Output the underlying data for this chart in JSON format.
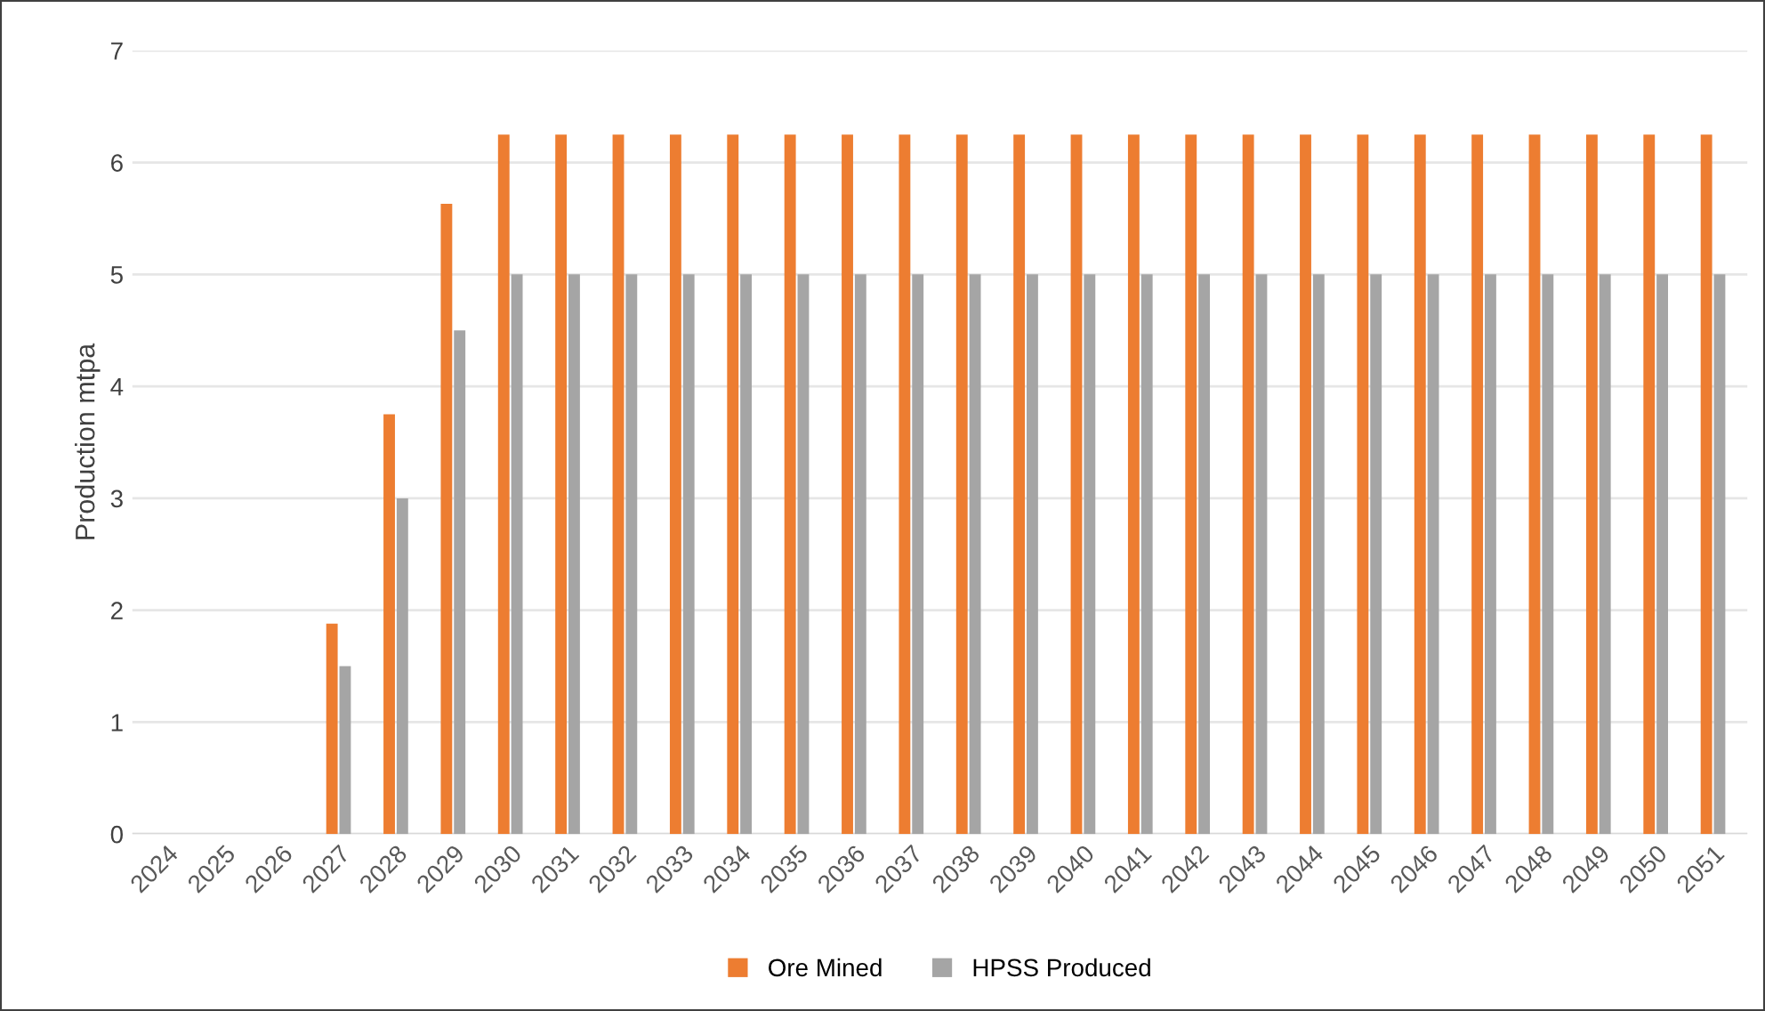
{
  "chart_data": {
    "type": "bar",
    "ylabel": "Production mtpa",
    "categories": [
      "2024",
      "2025",
      "2026",
      "2027",
      "2028",
      "2029",
      "2030",
      "2031",
      "2032",
      "2033",
      "2034",
      "2035",
      "2036",
      "2037",
      "2038",
      "2039",
      "2040",
      "2041",
      "2042",
      "2043",
      "2044",
      "2045",
      "2046",
      "2047",
      "2048",
      "2049",
      "2050",
      "2051"
    ],
    "series": [
      {
        "name": "Ore Mined",
        "color": "#ed7d31",
        "values": [
          0,
          0,
          0,
          1.88,
          3.75,
          5.63,
          6.25,
          6.25,
          6.25,
          6.25,
          6.25,
          6.25,
          6.25,
          6.25,
          6.25,
          6.25,
          6.25,
          6.25,
          6.25,
          6.25,
          6.25,
          6.25,
          6.25,
          6.25,
          6.25,
          6.25,
          6.25,
          6.25
        ]
      },
      {
        "name": "HPSS Produced",
        "color": "#a5a5a5",
        "values": [
          0,
          0,
          0,
          1.5,
          3,
          4.5,
          5,
          5,
          5,
          5,
          5,
          5,
          5,
          5,
          5,
          5,
          5,
          5,
          5,
          5,
          5,
          5,
          5,
          5,
          5,
          5,
          5,
          5
        ]
      }
    ],
    "ylim": [
      0,
      7
    ],
    "yticks": [
      0,
      1,
      2,
      3,
      4,
      5,
      6,
      7
    ],
    "grid": "y",
    "legend": "bottom"
  }
}
